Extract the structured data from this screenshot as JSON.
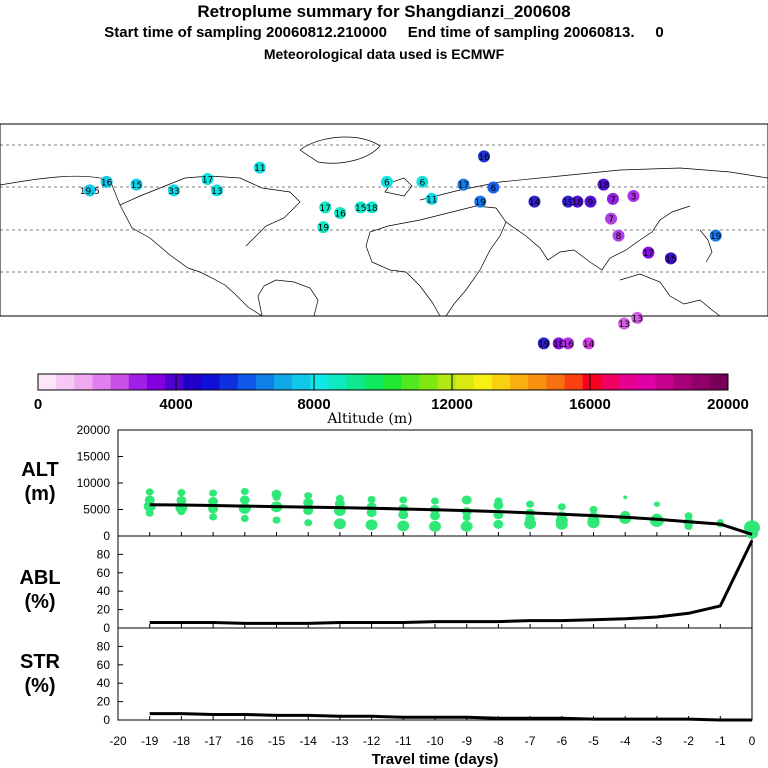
{
  "header": {
    "title": "Retroplume summary for Shangdianzi_200608",
    "subtitle": "Start time of sampling 20060812.210000     End time of sampling 20060813.     0",
    "met": "Meteorological data used is ECMWF"
  },
  "map": {
    "labels": [
      {
        "t": "19.5",
        "lon": -133,
        "lat": 44,
        "c": "#10c8e8"
      },
      {
        "t": "16",
        "lon": -124,
        "lat": 47,
        "c": "#10c8e8"
      },
      {
        "t": "15",
        "lon": -108,
        "lat": 46,
        "c": "#10d0e8"
      },
      {
        "t": "33",
        "lon": -88,
        "lat": 44,
        "c": "#10d8e8"
      },
      {
        "t": "17",
        "lon": -70,
        "lat": 48,
        "c": "#10e0e0"
      },
      {
        "t": "13",
        "lon": -65,
        "lat": 44,
        "c": "#10e0e0"
      },
      {
        "t": "11",
        "lon": -42,
        "lat": 52,
        "c": "#10e0d8"
      },
      {
        "t": "17",
        "lon": -7,
        "lat": 38,
        "c": "#10e8c8"
      },
      {
        "t": "19",
        "lon": -8,
        "lat": 31,
        "c": "#10e8c8"
      },
      {
        "t": "16",
        "lon": 1,
        "lat": 36,
        "c": "#10e8c8"
      },
      {
        "t": "15",
        "lon": 12,
        "lat": 38,
        "c": "#10e8d0"
      },
      {
        "t": "18",
        "lon": 18,
        "lat": 38,
        "c": "#10e8d0"
      },
      {
        "t": "6",
        "lon": 26,
        "lat": 47,
        "c": "#10e0e0"
      },
      {
        "t": "6",
        "lon": 45,
        "lat": 47,
        "c": "#10e0e0"
      },
      {
        "t": "11",
        "lon": 50,
        "lat": 41,
        "c": "#10d8e8"
      },
      {
        "t": "17",
        "lon": 67,
        "lat": 46,
        "c": "#1878e8"
      },
      {
        "t": "19",
        "lon": 76,
        "lat": 40,
        "c": "#1878e8"
      },
      {
        "t": "6",
        "lon": 83,
        "lat": 45,
        "c": "#1860e8"
      },
      {
        "t": "16",
        "lon": 78,
        "lat": 56,
        "c": "#2030d0"
      },
      {
        "t": "14",
        "lon": 105,
        "lat": 40,
        "c": "#3020c8"
      },
      {
        "t": "19",
        "lon": 123,
        "lat": 40,
        "c": "#3020c8"
      },
      {
        "t": "18",
        "lon": 128,
        "lat": 40,
        "c": "#5010d8"
      },
      {
        "t": "9",
        "lon": 135,
        "lat": 40,
        "c": "#5010d8"
      },
      {
        "t": "18",
        "lon": 142,
        "lat": 46,
        "c": "#5010d8"
      },
      {
        "t": "7",
        "lon": 147,
        "lat": 41,
        "c": "#9020e0"
      },
      {
        "t": "3",
        "lon": 158,
        "lat": 42,
        "c": "#b030e8"
      },
      {
        "t": "7",
        "lon": 146,
        "lat": 34,
        "c": "#b040e8"
      },
      {
        "t": "8",
        "lon": 150,
        "lat": 28,
        "c": "#b040e8"
      },
      {
        "t": "17",
        "lon": 166,
        "lat": 22,
        "c": "#8010d8"
      },
      {
        "t": "15",
        "lon": 178,
        "lat": 20,
        "c": "#4010c8"
      },
      {
        "t": "19",
        "lon": 202,
        "lat": 28,
        "c": "#1878e8"
      },
      {
        "t": "13",
        "lon": 153,
        "lat": -3,
        "c": "#d060e0"
      },
      {
        "t": "13",
        "lon": 160,
        "lat": -1,
        "c": "#d060e0"
      },
      {
        "t": "19",
        "lon": 110,
        "lat": -10,
        "c": "#3020c8"
      },
      {
        "t": "18",
        "lon": 118,
        "lat": -10,
        "c": "#8010d8"
      },
      {
        "t": "16",
        "lon": 123,
        "lat": -10,
        "c": "#b030e0"
      },
      {
        "t": "14",
        "lon": 134,
        "lat": -10,
        "c": "#d040e0"
      }
    ]
  },
  "colorbar": {
    "ticks": [
      "0",
      "4000",
      "8000",
      "12000",
      "16000",
      "20000"
    ],
    "label": "Altitude  (m)",
    "colors": [
      "#fde6f8",
      "#f8c8f4",
      "#f0a8f0",
      "#e080f0",
      "#c850e8",
      "#a020e8",
      "#8000e0",
      "#5000d0",
      "#2000c8",
      "#1010d8",
      "#1030e0",
      "#1058e8",
      "#1080e8",
      "#10a8e8",
      "#10c8e8",
      "#10e8e8",
      "#10e8c0",
      "#10e890",
      "#10e860",
      "#20e830",
      "#50e820",
      "#80e810",
      "#b0e810",
      "#d8e810",
      "#f8f010",
      "#f8d010",
      "#f8b010",
      "#f89010",
      "#f87010",
      "#f84010",
      "#f80020",
      "#f00060",
      "#e80090",
      "#e000a8",
      "#c80090",
      "#a80078",
      "#900068",
      "#780058"
    ]
  },
  "panels": {
    "alt": {
      "name": "ALT",
      "unit": "(m)",
      "ticks": [
        "20000",
        "15000",
        "10000",
        "5000",
        "0"
      ]
    },
    "abl": {
      "name": "ABL",
      "unit": "(%)",
      "ticks": [
        "80",
        "60",
        "40",
        "20",
        "0"
      ]
    },
    "str": {
      "name": "STR",
      "unit": "(%)",
      "ticks": [
        "80",
        "60",
        "40",
        "20",
        "0"
      ]
    }
  },
  "xaxis": {
    "label": "Travel time (days)",
    "ticks": [
      "-20",
      "-19",
      "-18",
      "-17",
      "-16",
      "-15",
      "-14",
      "-13",
      "-12",
      "-11",
      "-10",
      "-9",
      "-8",
      "-7",
      "-6",
      "-5",
      "-4",
      "-3",
      "-2",
      "-1",
      "0"
    ]
  },
  "chart_data": {
    "type": "line",
    "x": [
      -19,
      -18,
      -17,
      -16,
      -15,
      -14,
      -13,
      -12,
      -11,
      -10,
      -9,
      -8,
      -7,
      -6,
      -5,
      -4,
      -3,
      -2,
      -1,
      0
    ],
    "xlabel": "Travel time (days)",
    "series": [
      {
        "name": "ALT (m)",
        "ylim": [
          0,
          20000
        ],
        "values": [
          5900,
          5850,
          5750,
          5650,
          5550,
          5450,
          5350,
          5250,
          5100,
          4950,
          4800,
          4600,
          4350,
          4100,
          3850,
          3550,
          3150,
          2700,
          2250,
          300
        ]
      },
      {
        "name": "ABL (%)",
        "ylim": [
          0,
          100
        ],
        "values": [
          6,
          6,
          6,
          5,
          5,
          5,
          6,
          6,
          6,
          7,
          7,
          7,
          8,
          8,
          9,
          10,
          12,
          16,
          24,
          95
        ]
      },
      {
        "name": "STR (%)",
        "ylim": [
          0,
          100
        ],
        "values": [
          7,
          7,
          6,
          6,
          5,
          5,
          4,
          4,
          3,
          3,
          3,
          2,
          2,
          2,
          1,
          1,
          1,
          1,
          0,
          0
        ]
      }
    ],
    "alt_scatter": [
      {
        "x": -19,
        "y": [
          8300,
          6800,
          5600,
          4300
        ],
        "s": [
          4,
          5,
          6,
          4
        ]
      },
      {
        "x": -18,
        "y": [
          8200,
          6700,
          5300,
          4600
        ],
        "s": [
          4,
          5,
          6,
          4
        ]
      },
      {
        "x": -17,
        "y": [
          8100,
          6500,
          5100,
          3600
        ],
        "s": [
          4,
          5,
          5,
          4
        ]
      },
      {
        "x": -16,
        "y": [
          8400,
          6800,
          5200,
          3300
        ],
        "s": [
          4,
          5,
          6,
          4
        ]
      },
      {
        "x": -15,
        "y": [
          7900,
          7300,
          5500,
          3000
        ],
        "s": [
          5,
          4,
          6,
          4
        ]
      },
      {
        "x": -14,
        "y": [
          7600,
          6300,
          4800,
          2500
        ],
        "s": [
          4,
          5,
          5,
          4
        ]
      },
      {
        "x": -13,
        "y": [
          7100,
          6100,
          4800,
          2300
        ],
        "s": [
          4,
          5,
          6,
          6
        ]
      },
      {
        "x": -12,
        "y": [
          6900,
          5500,
          4400,
          2100
        ],
        "s": [
          4,
          5,
          5,
          6
        ]
      },
      {
        "x": -11,
        "y": [
          6800,
          5200,
          4000,
          1900
        ],
        "s": [
          4,
          5,
          5,
          6
        ]
      },
      {
        "x": -10,
        "y": [
          6600,
          5000,
          3800,
          1800
        ],
        "s": [
          4,
          5,
          5,
          6
        ]
      },
      {
        "x": -9,
        "y": [
          6800,
          4600,
          3500,
          1800
        ],
        "s": [
          5,
          5,
          4,
          6
        ]
      },
      {
        "x": -8,
        "y": [
          6600,
          5800,
          4000,
          2200
        ],
        "s": [
          4,
          5,
          5,
          5
        ]
      },
      {
        "x": -7,
        "y": [
          6000,
          4300,
          3100,
          2300
        ],
        "s": [
          4,
          5,
          5,
          6
        ]
      },
      {
        "x": -6,
        "y": [
          5500,
          3800,
          2900,
          2200
        ],
        "s": [
          4,
          5,
          6,
          6
        ]
      },
      {
        "x": -5,
        "y": [
          5000,
          3700,
          2900,
          2500
        ],
        "s": [
          4,
          5,
          6,
          6
        ]
      },
      {
        "x": -4,
        "y": [
          7300,
          3900,
          3300
        ],
        "s": [
          2,
          5,
          6
        ]
      },
      {
        "x": -3,
        "y": [
          6000,
          3400,
          2900
        ],
        "s": [
          3,
          5,
          7
        ]
      },
      {
        "x": -2,
        "y": [
          3800,
          2600,
          1800
        ],
        "s": [
          4,
          5,
          4
        ]
      },
      {
        "x": -1,
        "y": [
          2700,
          2300
        ],
        "s": [
          3,
          4
        ]
      },
      {
        "x": 0,
        "y": [
          1600,
          500
        ],
        "s": [
          8,
          6
        ]
      }
    ]
  }
}
